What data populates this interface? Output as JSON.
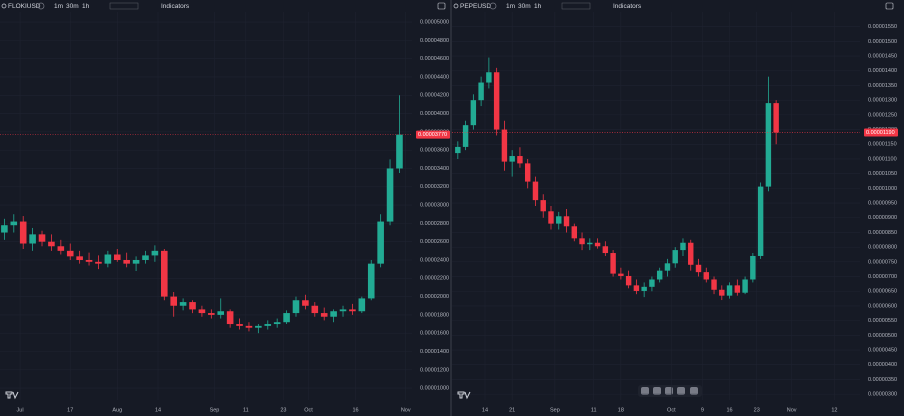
{
  "chart_data": [
    {
      "type": "candlestick",
      "symbol": "FLOKIUSD",
      "intervals": [
        "1m",
        "30m",
        "1h"
      ],
      "indicators_label": "Indicators",
      "up_color": "#22ab94",
      "down_color": "#f23645",
      "grid": true,
      "x": [
        -5,
        -2,
        1,
        4,
        7,
        10,
        13,
        16,
        19,
        22,
        25,
        28,
        31,
        34,
        37,
        40,
        43,
        46,
        49,
        52,
        55,
        58,
        61,
        64,
        67,
        70,
        73,
        76,
        79,
        82,
        85,
        88,
        91,
        94,
        97,
        100,
        103,
        106,
        109,
        112,
        115,
        118,
        121
      ],
      "open": [
        2.7e-05,
        2.78e-05,
        2.82e-05,
        2.58e-05,
        2.68e-05,
        2.6e-05,
        2.55e-05,
        2.5e-05,
        2.44e-05,
        2.4e-05,
        2.38e-05,
        2.36e-05,
        2.46e-05,
        2.4e-05,
        2.36e-05,
        2.4e-05,
        2.45e-05,
        2.5e-05,
        2e-05,
        1.9e-05,
        1.94e-05,
        1.86e-05,
        1.82e-05,
        1.8e-05,
        1.84e-05,
        1.7e-05,
        1.68e-05,
        1.66e-05,
        1.68e-05,
        1.7e-05,
        1.72e-05,
        1.82e-05,
        1.96e-05,
        1.9e-05,
        1.82e-05,
        1.78e-05,
        1.84e-05,
        1.86e-05,
        1.84e-05,
        1.98e-05,
        2.36e-05,
        2.82e-05,
        3.4e-05
      ],
      "high": [
        2.85e-05,
        2.9e-05,
        2.88e-05,
        2.75e-05,
        2.72e-05,
        2.68e-05,
        2.62e-05,
        2.58e-05,
        2.5e-05,
        2.48e-05,
        2.45e-05,
        2.5e-05,
        2.52e-05,
        2.48e-05,
        2.44e-05,
        2.5e-05,
        2.56e-05,
        2.52e-05,
        2.05e-05,
        1.98e-05,
        1.96e-05,
        1.9e-05,
        1.86e-05,
        1.98e-05,
        1.86e-05,
        1.76e-05,
        1.72e-05,
        1.7e-05,
        1.74e-05,
        1.76e-05,
        1.85e-05,
        2e-05,
        2.02e-05,
        1.94e-05,
        1.88e-05,
        1.86e-05,
        1.9e-05,
        1.92e-05,
        2e-05,
        2.4e-05,
        2.9e-05,
        3.5e-05,
        4.2e-05
      ],
      "low": [
        2.62e-05,
        2.7e-05,
        2.52e-05,
        2.5e-05,
        2.55e-05,
        2.5e-05,
        2.46e-05,
        2.4e-05,
        2.36e-05,
        2.34e-05,
        2.3e-05,
        2.32e-05,
        2.38e-05,
        2.32e-05,
        2.28e-05,
        2.36e-05,
        2.38e-05,
        1.96e-05,
        1.78e-05,
        1.85e-05,
        1.82e-05,
        1.78e-05,
        1.76e-05,
        1.76e-05,
        1.66e-05,
        1.64e-05,
        1.62e-05,
        1.6e-05,
        1.64e-05,
        1.66e-05,
        1.7e-05,
        1.78e-05,
        1.86e-05,
        1.78e-05,
        1.74e-05,
        1.72e-05,
        1.78e-05,
        1.8e-05,
        1.82e-05,
        1.96e-05,
        2.32e-05,
        2.78e-05,
        3.35e-05
      ],
      "close": [
        2.78e-05,
        2.82e-05,
        2.58e-05,
        2.68e-05,
        2.6e-05,
        2.55e-05,
        2.5e-05,
        2.44e-05,
        2.4e-05,
        2.38e-05,
        2.36e-05,
        2.46e-05,
        2.4e-05,
        2.36e-05,
        2.4e-05,
        2.45e-05,
        2.5e-05,
        2e-05,
        1.9e-05,
        1.94e-05,
        1.86e-05,
        1.82e-05,
        1.8e-05,
        1.84e-05,
        1.7e-05,
        1.68e-05,
        1.66e-05,
        1.68e-05,
        1.7e-05,
        1.72e-05,
        1.82e-05,
        1.96e-05,
        1.9e-05,
        1.82e-05,
        1.78e-05,
        1.84e-05,
        1.86e-05,
        1.84e-05,
        1.98e-05,
        2.36e-05,
        2.82e-05,
        3.4e-05,
        3.77e-05
      ],
      "last_price": {
        "value": 3.77e-05,
        "label": "0.00003770"
      },
      "xlim": [
        -6.4,
        125
      ],
      "xticks": [
        {
          "value": 0,
          "label": "Jul"
        },
        {
          "value": 16,
          "label": "17"
        },
        {
          "value": 31,
          "label": "Aug"
        },
        {
          "value": 44,
          "label": "14"
        },
        {
          "value": 62,
          "label": "Sep"
        },
        {
          "value": 72,
          "label": "11"
        },
        {
          "value": 84,
          "label": "23"
        },
        {
          "value": 92,
          "label": "Oct"
        },
        {
          "value": 107,
          "label": "16"
        },
        {
          "value": 123,
          "label": "Nov"
        }
      ],
      "ylim": [
        8.7e-06,
        5.11e-05
      ],
      "yticks": [
        {
          "value": 1e-05,
          "label": "0.00001000"
        },
        {
          "value": 1.2e-05,
          "label": "0.00001200"
        },
        {
          "value": 1.4e-05,
          "label": "0.00001400"
        },
        {
          "value": 1.6e-05,
          "label": "0.00001600"
        },
        {
          "value": 1.8e-05,
          "label": "0.00001800"
        },
        {
          "value": 2e-05,
          "label": "0.00002000"
        },
        {
          "value": 2.2e-05,
          "label": "0.00002200"
        },
        {
          "value": 2.4e-05,
          "label": "0.00002400"
        },
        {
          "value": 2.6e-05,
          "label": "0.00002600"
        },
        {
          "value": 2.8e-05,
          "label": "0.00002800"
        },
        {
          "value": 3e-05,
          "label": "0.00003000"
        },
        {
          "value": 3.2e-05,
          "label": "0.00003200"
        },
        {
          "value": 3.4e-05,
          "label": "0.00003400"
        },
        {
          "value": 3.6e-05,
          "label": "0.00003600"
        },
        {
          "value": 3.8e-05,
          "label": "0.00003800"
        },
        {
          "value": 4e-05,
          "label": "0.00004000"
        },
        {
          "value": 4.2e-05,
          "label": "0.00004200"
        },
        {
          "value": 4.4e-05,
          "label": "0.00004400"
        },
        {
          "value": 4.6e-05,
          "label": "0.00004600"
        },
        {
          "value": 4.8e-05,
          "label": "0.00004800"
        },
        {
          "value": 5e-05,
          "label": "0.00005000"
        }
      ]
    },
    {
      "type": "candlestick",
      "symbol": "PEPEUSD",
      "intervals": [
        "1m",
        "30m",
        "1h"
      ],
      "indicators_label": "Indicators",
      "up_color": "#22ab94",
      "down_color": "#f23645",
      "grid": true,
      "x": [
        -7,
        -5,
        -3,
        -1,
        1,
        3,
        5,
        7,
        9,
        11,
        13,
        15,
        17,
        19,
        21,
        23,
        25,
        27,
        29,
        31,
        33,
        35,
        37,
        39,
        41,
        43,
        45,
        47,
        49,
        51,
        53,
        55,
        57,
        59,
        61,
        63,
        65,
        67,
        69,
        71,
        73,
        75
      ],
      "open": [
        1.12e-05,
        1.141e-05,
        1.215e-05,
        1.3e-05,
        1.36e-05,
        1.395e-05,
        1.2e-05,
        1.091e-05,
        1.11e-05,
        1.085e-05,
        1.023e-05,
        9.6e-06,
        9.22e-06,
        8.8e-06,
        9.05e-06,
        8.71e-06,
        8.3e-06,
        8.1e-06,
        8.15e-06,
        8.03e-06,
        7.8e-06,
        7.1e-06,
        7.02e-06,
        6.7e-06,
        6.51e-06,
        6.65e-06,
        6.9e-06,
        7.2e-06,
        7.45e-06,
        7.9e-06,
        8.15e-06,
        7.4e-06,
        7.15e-06,
        6.9e-06,
        6.55e-06,
        6.35e-06,
        6.7e-06,
        6.45e-06,
        6.9e-06,
        7.7e-06,
        1.006e-05,
        1.29e-05
      ],
      "high": [
        1.16e-05,
        1.23e-05,
        1.32e-05,
        1.38e-05,
        1.445e-05,
        1.41e-05,
        1.23e-05,
        1.13e-05,
        1.14e-05,
        1.1e-05,
        1.04e-05,
        9.8e-06,
        9.4e-06,
        9.2e-06,
        9.3e-06,
        8.8e-06,
        8.5e-06,
        8.3e-06,
        8.3e-06,
        8.2e-06,
        7.9e-06,
        7.3e-06,
        7.2e-06,
        6.9e-06,
        6.8e-06,
        7e-06,
        7.3e-06,
        7.6e-06,
        8e-06,
        8.3e-06,
        8.25e-06,
        7.6e-06,
        7.3e-06,
        7e-06,
        6.7e-06,
        6.8e-06,
        6.9e-06,
        7e-06,
        7.8e-06,
        1.02e-05,
        1.38e-05,
        1.3e-05
      ],
      "low": [
        1.1e-05,
        1.13e-05,
        1.2e-05,
        1.28e-05,
        1.34e-05,
        1.18e-05,
        1.06e-05,
        1.04e-05,
        1.07e-05,
        1e-05,
        9.4e-06,
        9e-06,
        8.6e-06,
        8.6e-06,
        8.5e-06,
        8.2e-06,
        7.9e-06,
        7.9e-06,
        7.95e-06,
        7.7e-06,
        7e-06,
        6.9e-06,
        6.6e-06,
        6.4e-06,
        6.3e-06,
        6.5e-06,
        6.8e-06,
        7e-06,
        7.3e-06,
        7.7e-06,
        7.2e-06,
        7e-06,
        6.8e-06,
        6.4e-06,
        6.2e-06,
        6.25e-06,
        6.35e-06,
        6.4e-06,
        6.8e-06,
        7.6e-06,
        9.9e-06,
        1.15e-05
      ],
      "close": [
        1.141e-05,
        1.215e-05,
        1.3e-05,
        1.36e-05,
        1.395e-05,
        1.2e-05,
        1.091e-05,
        1.11e-05,
        1.085e-05,
        1.023e-05,
        9.6e-06,
        9.22e-06,
        8.8e-06,
        9.05e-06,
        8.71e-06,
        8.3e-06,
        8.1e-06,
        8.15e-06,
        8.03e-06,
        7.8e-06,
        7.1e-06,
        7.02e-06,
        6.7e-06,
        6.51e-06,
        6.65e-06,
        6.9e-06,
        7.2e-06,
        7.45e-06,
        7.9e-06,
        8.15e-06,
        7.4e-06,
        7.15e-06,
        6.9e-06,
        6.55e-06,
        6.35e-06,
        6.7e-06,
        6.45e-06,
        6.9e-06,
        7.7e-06,
        1.006e-05,
        1.29e-05,
        1.19e-05
      ],
      "last_price": {
        "value": 1.19e-05,
        "label": "0.00001190"
      },
      "xlim": [
        -8.5,
        96.6
      ],
      "xticks": [
        {
          "value": 0,
          "label": "14"
        },
        {
          "value": 7,
          "label": "21"
        },
        {
          "value": 18,
          "label": "Sep"
        },
        {
          "value": 28,
          "label": "11"
        },
        {
          "value": 35,
          "label": "18"
        },
        {
          "value": 48,
          "label": "Oct"
        },
        {
          "value": 56,
          "label": "9"
        },
        {
          "value": 63,
          "label": "16"
        },
        {
          "value": 70,
          "label": "23"
        },
        {
          "value": 79,
          "label": "Nov"
        },
        {
          "value": 90,
          "label": "12"
        }
      ],
      "ylim": [
        2.8e-06,
        1.6e-05
      ],
      "yticks": [
        {
          "value": 3e-06,
          "label": "0.00000300"
        },
        {
          "value": 3.5e-06,
          "label": "0.00000350"
        },
        {
          "value": 4e-06,
          "label": "0.00000400"
        },
        {
          "value": 4.5e-06,
          "label": "0.00000450"
        },
        {
          "value": 5e-06,
          "label": "0.00000500"
        },
        {
          "value": 5.5e-06,
          "label": "0.00000550"
        },
        {
          "value": 6e-06,
          "label": "0.00000600"
        },
        {
          "value": 6.5e-06,
          "label": "0.00000650"
        },
        {
          "value": 7e-06,
          "label": "0.00000700"
        },
        {
          "value": 7.5e-06,
          "label": "0.00000750"
        },
        {
          "value": 8e-06,
          "label": "0.00000800"
        },
        {
          "value": 8.5e-06,
          "label": "0.00000850"
        },
        {
          "value": 9e-06,
          "label": "0.00000900"
        },
        {
          "value": 9.5e-06,
          "label": "0.00000950"
        },
        {
          "value": 1e-05,
          "label": "0.00001000"
        },
        {
          "value": 1.05e-05,
          "label": "0.00001050"
        },
        {
          "value": 1.1e-05,
          "label": "0.00001100"
        },
        {
          "value": 1.15e-05,
          "label": "0.00001150"
        },
        {
          "value": 1.2e-05,
          "label": "0.00001200"
        },
        {
          "value": 1.25e-05,
          "label": "0.00001250"
        },
        {
          "value": 1.3e-05,
          "label": "0.00001300"
        },
        {
          "value": 1.35e-05,
          "label": "0.00001350"
        },
        {
          "value": 1.4e-05,
          "label": "0.00001400"
        },
        {
          "value": 1.45e-05,
          "label": "0.00001450"
        },
        {
          "value": 1.5e-05,
          "label": "0.00001500"
        },
        {
          "value": 1.55e-05,
          "label": "0.00001550"
        }
      ]
    }
  ]
}
